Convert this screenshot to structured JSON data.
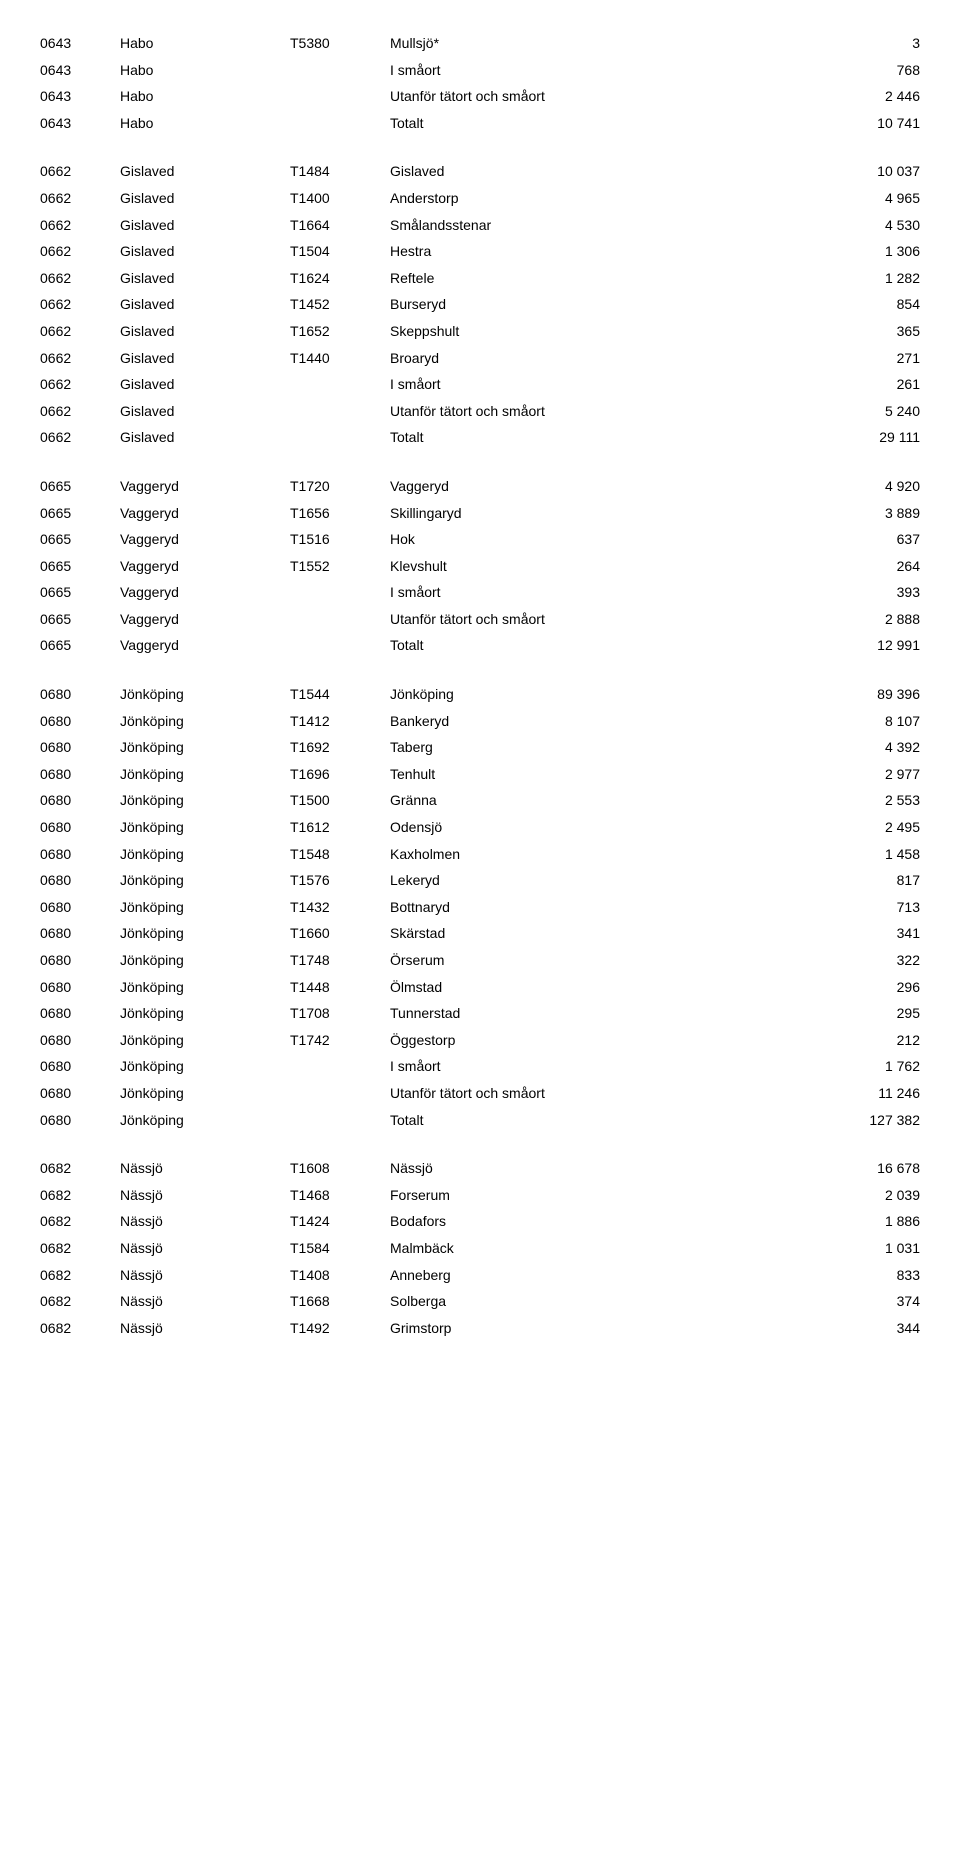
{
  "groups": [
    {
      "rows": [
        {
          "code": "0643",
          "muni": "Habo",
          "tcode": "T5380",
          "place": "Mullsjö*",
          "val": "3"
        },
        {
          "code": "0643",
          "muni": "Habo",
          "tcode": "",
          "place": "I småort",
          "val": "768"
        },
        {
          "code": "0643",
          "muni": "Habo",
          "tcode": "",
          "place": "Utanför tätort och småort",
          "val": "2 446"
        },
        {
          "code": "0643",
          "muni": "Habo",
          "tcode": "",
          "place": "Totalt",
          "val": "10 741"
        }
      ]
    },
    {
      "rows": [
        {
          "code": "0662",
          "muni": "Gislaved",
          "tcode": "T1484",
          "place": "Gislaved",
          "val": "10 037"
        },
        {
          "code": "0662",
          "muni": "Gislaved",
          "tcode": "T1400",
          "place": "Anderstorp",
          "val": "4 965"
        },
        {
          "code": "0662",
          "muni": "Gislaved",
          "tcode": "T1664",
          "place": "Smålandsstenar",
          "val": "4 530"
        },
        {
          "code": "0662",
          "muni": "Gislaved",
          "tcode": "T1504",
          "place": "Hestra",
          "val": "1 306"
        },
        {
          "code": "0662",
          "muni": "Gislaved",
          "tcode": "T1624",
          "place": "Reftele",
          "val": "1 282"
        },
        {
          "code": "0662",
          "muni": "Gislaved",
          "tcode": "T1452",
          "place": "Burseryd",
          "val": "854"
        },
        {
          "code": "0662",
          "muni": "Gislaved",
          "tcode": "T1652",
          "place": "Skeppshult",
          "val": "365"
        },
        {
          "code": "0662",
          "muni": "Gislaved",
          "tcode": "T1440",
          "place": "Broaryd",
          "val": "271"
        },
        {
          "code": "0662",
          "muni": "Gislaved",
          "tcode": "",
          "place": "I småort",
          "val": "261"
        },
        {
          "code": "0662",
          "muni": "Gislaved",
          "tcode": "",
          "place": "Utanför tätort och småort",
          "val": "5 240"
        },
        {
          "code": "0662",
          "muni": "Gislaved",
          "tcode": "",
          "place": "Totalt",
          "val": "29 111"
        }
      ]
    },
    {
      "rows": [
        {
          "code": "0665",
          "muni": "Vaggeryd",
          "tcode": "T1720",
          "place": "Vaggeryd",
          "val": "4 920"
        },
        {
          "code": "0665",
          "muni": "Vaggeryd",
          "tcode": "T1656",
          "place": "Skillingaryd",
          "val": "3 889"
        },
        {
          "code": "0665",
          "muni": "Vaggeryd",
          "tcode": "T1516",
          "place": "Hok",
          "val": "637"
        },
        {
          "code": "0665",
          "muni": "Vaggeryd",
          "tcode": "T1552",
          "place": "Klevshult",
          "val": "264"
        },
        {
          "code": "0665",
          "muni": "Vaggeryd",
          "tcode": "",
          "place": "I småort",
          "val": "393"
        },
        {
          "code": "0665",
          "muni": "Vaggeryd",
          "tcode": "",
          "place": "Utanför tätort och småort",
          "val": "2 888"
        },
        {
          "code": "0665",
          "muni": "Vaggeryd",
          "tcode": "",
          "place": "Totalt",
          "val": "12 991"
        }
      ]
    },
    {
      "rows": [
        {
          "code": "0680",
          "muni": "Jönköping",
          "tcode": "T1544",
          "place": "Jönköping",
          "val": "89 396"
        },
        {
          "code": "0680",
          "muni": "Jönköping",
          "tcode": "T1412",
          "place": "Bankeryd",
          "val": "8 107"
        },
        {
          "code": "0680",
          "muni": "Jönköping",
          "tcode": "T1692",
          "place": "Taberg",
          "val": "4 392"
        },
        {
          "code": "0680",
          "muni": "Jönköping",
          "tcode": "T1696",
          "place": "Tenhult",
          "val": "2 977"
        },
        {
          "code": "0680",
          "muni": "Jönköping",
          "tcode": "T1500",
          "place": "Gränna",
          "val": "2 553"
        },
        {
          "code": "0680",
          "muni": "Jönköping",
          "tcode": "T1612",
          "place": "Odensjö",
          "val": "2 495"
        },
        {
          "code": "0680",
          "muni": "Jönköping",
          "tcode": "T1548",
          "place": "Kaxholmen",
          "val": "1 458"
        },
        {
          "code": "0680",
          "muni": "Jönköping",
          "tcode": "T1576",
          "place": "Lekeryd",
          "val": "817"
        },
        {
          "code": "0680",
          "muni": "Jönköping",
          "tcode": "T1432",
          "place": "Bottnaryd",
          "val": "713"
        },
        {
          "code": "0680",
          "muni": "Jönköping",
          "tcode": "T1660",
          "place": "Skärstad",
          "val": "341"
        },
        {
          "code": "0680",
          "muni": "Jönköping",
          "tcode": "T1748",
          "place": "Örserum",
          "val": "322"
        },
        {
          "code": "0680",
          "muni": "Jönköping",
          "tcode": "T1448",
          "place": "Ölmstad",
          "val": "296"
        },
        {
          "code": "0680",
          "muni": "Jönköping",
          "tcode": "T1708",
          "place": "Tunnerstad",
          "val": "295"
        },
        {
          "code": "0680",
          "muni": "Jönköping",
          "tcode": "T1742",
          "place": "Öggestorp",
          "val": "212"
        },
        {
          "code": "0680",
          "muni": "Jönköping",
          "tcode": "",
          "place": "I småort",
          "val": "1 762"
        },
        {
          "code": "0680",
          "muni": "Jönköping",
          "tcode": "",
          "place": "Utanför tätort och småort",
          "val": "11 246"
        },
        {
          "code": "0680",
          "muni": "Jönköping",
          "tcode": "",
          "place": "Totalt",
          "val": "127 382"
        }
      ]
    },
    {
      "rows": [
        {
          "code": "0682",
          "muni": "Nässjö",
          "tcode": "T1608",
          "place": "Nässjö",
          "val": "16 678"
        },
        {
          "code": "0682",
          "muni": "Nässjö",
          "tcode": "T1468",
          "place": "Forserum",
          "val": "2 039"
        },
        {
          "code": "0682",
          "muni": "Nässjö",
          "tcode": "T1424",
          "place": "Bodafors",
          "val": "1 886"
        },
        {
          "code": "0682",
          "muni": "Nässjö",
          "tcode": "T1584",
          "place": "Malmbäck",
          "val": "1 031"
        },
        {
          "code": "0682",
          "muni": "Nässjö",
          "tcode": "T1408",
          "place": "Anneberg",
          "val": "833"
        },
        {
          "code": "0682",
          "muni": "Nässjö",
          "tcode": "T1668",
          "place": "Solberga",
          "val": "374"
        },
        {
          "code": "0682",
          "muni": "Nässjö",
          "tcode": "T1492",
          "place": "Grimstorp",
          "val": "344"
        }
      ]
    }
  ]
}
